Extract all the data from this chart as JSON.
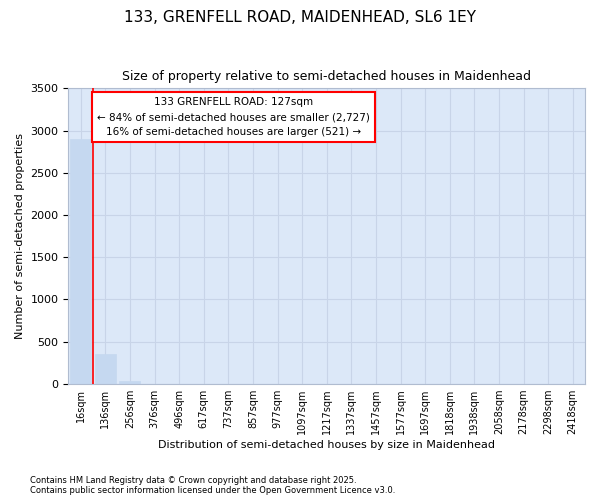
{
  "title_line1": "133, GRENFELL ROAD, MAIDENHEAD, SL6 1EY",
  "title_line2": "Size of property relative to semi-detached houses in Maidenhead",
  "xlabel": "Distribution of semi-detached houses by size in Maidenhead",
  "ylabel": "Number of semi-detached properties",
  "categories": [
    "16sqm",
    "136sqm",
    "256sqm",
    "376sqm",
    "496sqm",
    "617sqm",
    "737sqm",
    "857sqm",
    "977sqm",
    "1097sqm",
    "1217sqm",
    "1337sqm",
    "1457sqm",
    "1577sqm",
    "1697sqm",
    "1818sqm",
    "1938sqm",
    "2058sqm",
    "2178sqm",
    "2298sqm",
    "2418sqm"
  ],
  "values": [
    2900,
    360,
    30,
    0,
    0,
    0,
    0,
    0,
    0,
    0,
    0,
    0,
    0,
    0,
    0,
    0,
    0,
    0,
    0,
    0,
    0
  ],
  "bar_color": "#c5d8f0",
  "bar_edge_color": "#c5d8f0",
  "grid_color": "#c8d4e8",
  "background_color": "#dce8f8",
  "annotation_line1": "133 GRENFELL ROAD: 127sqm",
  "annotation_line2": "← 84% of semi-detached houses are smaller (2,727)",
  "annotation_line3": "16% of semi-detached houses are larger (521) →",
  "red_line_x": 0.5,
  "ylim": [
    0,
    3500
  ],
  "yticks": [
    0,
    500,
    1000,
    1500,
    2000,
    2500,
    3000,
    3500
  ],
  "footer_text": "Contains HM Land Registry data © Crown copyright and database right 2025.\nContains public sector information licensed under the Open Government Licence v3.0.",
  "title_fontsize": 11,
  "subtitle_fontsize": 9,
  "axis_label_fontsize": 8,
  "tick_fontsize": 7,
  "annotation_fontsize": 7.5,
  "footer_fontsize": 6
}
